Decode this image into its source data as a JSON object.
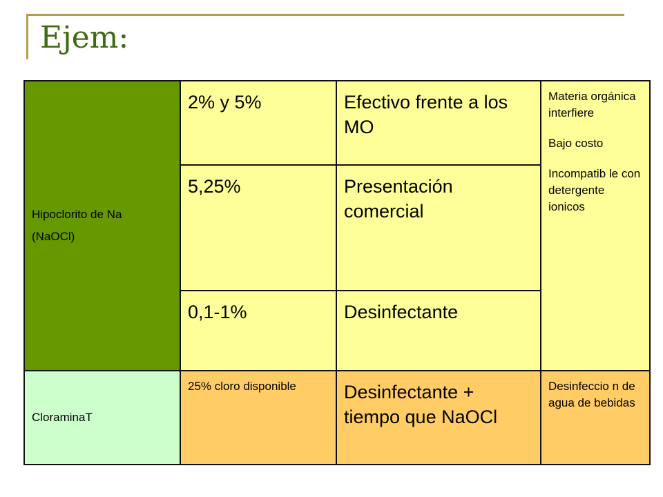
{
  "slide": {
    "title": "Ejem:"
  },
  "table": {
    "hipoclorito": {
      "name_line1": "Hipoclorito de Na",
      "name_line2": "(NaOCl)"
    },
    "rows": [
      {
        "concentration": "2% y 5%",
        "use": "Efectivo frente a los MO"
      },
      {
        "concentration": "5,25%",
        "use": "Presentación comercial"
      },
      {
        "concentration": "0,1-1%",
        "use": "Desinfectante"
      }
    ],
    "notes": [
      "Materia orgánica interfiere",
      "Bajo costo",
      "Incompatib le con detergente ionicos"
    ],
    "cloramina": {
      "name": "CloraminaT",
      "concentration": "25% cloro disponible",
      "use": "Desinfectante + tiempo que NaOCl",
      "note": "Desinfeccio n de agua de bebidas"
    }
  },
  "colors": {
    "title": "#3f6a10",
    "decoration": "#b5a04a",
    "green_cell": "#669900",
    "yellow_cell": "#ffff99",
    "mint_cell": "#ccffcc",
    "orange_cell": "#ffcc66"
  }
}
